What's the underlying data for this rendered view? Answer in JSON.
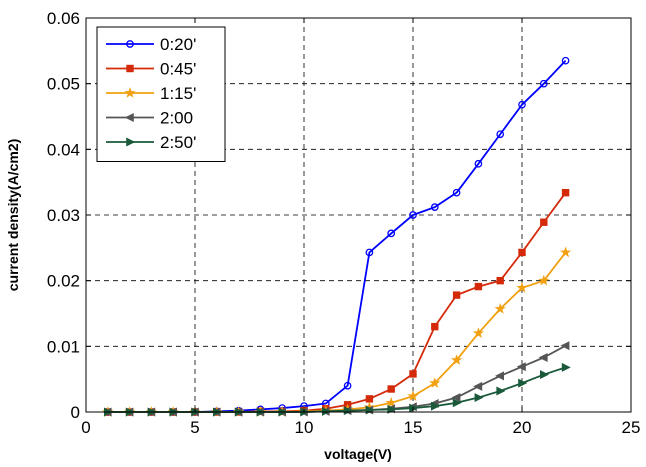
{
  "chart_data": {
    "type": "line",
    "title": "",
    "xlabel": "voltage(V)",
    "ylabel": "current density(A/cm2)",
    "xlim": [
      0,
      25
    ],
    "ylim": [
      0,
      0.06
    ],
    "xticks": [
      0,
      5,
      10,
      15,
      20,
      25
    ],
    "yticks": [
      0,
      0.01,
      0.02,
      0.03,
      0.04,
      0.05,
      0.06
    ],
    "xtick_labels": [
      "0",
      "5",
      "10",
      "15",
      "20",
      "25"
    ],
    "ytick_labels": [
      "0",
      "0.01",
      "0.02",
      "0.03",
      "0.04",
      "0.05",
      "0.06"
    ],
    "grid": true,
    "legend_position": "top-left",
    "x": [
      1,
      2,
      3,
      4,
      5,
      6,
      7,
      8,
      9,
      10,
      11,
      12,
      13,
      14,
      15,
      16,
      17,
      18,
      19,
      20,
      21,
      22
    ],
    "series": [
      {
        "name": "0:20'",
        "color": "#0000ff",
        "marker": "circle",
        "values": [
          0,
          0,
          0,
          0,
          0,
          0.0001,
          0.0002,
          0.0004,
          0.0006,
          0.0009,
          0.0013,
          0.004,
          0.0243,
          0.0272,
          0.03,
          0.0312,
          0.0334,
          0.0378,
          0.0423,
          0.0468,
          0.05,
          0.0535
        ]
      },
      {
        "name": "0:45'",
        "color": "#d42a0a",
        "marker": "square",
        "values": [
          0,
          0,
          0,
          0,
          0,
          0,
          0,
          0.0001,
          0.0001,
          0.0002,
          0.0005,
          0.0011,
          0.002,
          0.0035,
          0.0058,
          0.013,
          0.0178,
          0.0191,
          0.02,
          0.0243,
          0.0289,
          0.0334
        ]
      },
      {
        "name": "1:15'",
        "color": "#f0a010",
        "marker": "star",
        "values": [
          0,
          0,
          0,
          0,
          0,
          0,
          0,
          0,
          0,
          0.0001,
          0.0002,
          0.0004,
          0.0007,
          0.0014,
          0.0024,
          0.0044,
          0.0079,
          0.012,
          0.0157,
          0.0189,
          0.02,
          0.0243
        ]
      },
      {
        "name": "2:00",
        "color": "#555555",
        "marker": "triangle-left",
        "values": [
          0,
          0,
          0,
          0,
          0,
          0,
          0,
          0,
          0,
          0,
          0.0001,
          0.0002,
          0.0003,
          0.0005,
          0.0008,
          0.0013,
          0.0022,
          0.0039,
          0.0055,
          0.0069,
          0.0083,
          0.0101
        ]
      },
      {
        "name": "2:50'",
        "color": "#1a5a3a",
        "marker": "triangle-right",
        "values": [
          0,
          0,
          0,
          0,
          0,
          0,
          0,
          0,
          0,
          0,
          0.0001,
          0.0002,
          0.0003,
          0.0004,
          0.0006,
          0.0009,
          0.0014,
          0.0022,
          0.0032,
          0.0044,
          0.0057,
          0.0068
        ]
      }
    ]
  }
}
